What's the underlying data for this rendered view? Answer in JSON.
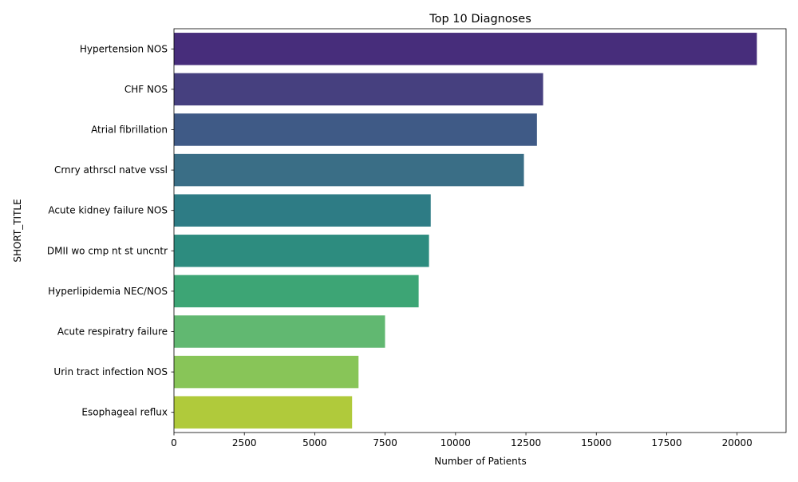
{
  "chart_data": {
    "type": "bar",
    "orientation": "horizontal",
    "title": "Top 10 Diagnoses",
    "xlabel": "Number of Patients",
    "ylabel": "SHORT_TITLE",
    "categories": [
      "Hypertension NOS",
      "CHF NOS",
      "Atrial fibrillation",
      "Crnry athrscl natve vssl",
      "Acute kidney failure NOS",
      "DMII wo cmp nt st uncntr",
      "Hyperlipidemia NEC/NOS",
      "Acute respiratry failure",
      "Urin tract infection NOS",
      "Esophageal reflux"
    ],
    "values": [
      20703,
      13111,
      12891,
      12429,
      9119,
      9058,
      8690,
      7497,
      6555,
      6326
    ],
    "colors": [
      "#472d7b",
      "#46407f",
      "#3f5a86",
      "#3a6e86",
      "#2e7c85",
      "#2d8c7f",
      "#3da575",
      "#61b871",
      "#88c558",
      "#b0ca3b"
    ],
    "xlim": [
      0,
      21738
    ],
    "xticks": [
      0,
      2500,
      5000,
      7500,
      10000,
      12500,
      15000,
      17500,
      20000
    ],
    "xtick_labels": [
      "0",
      "2500",
      "5000",
      "7500",
      "10000",
      "12500",
      "15000",
      "17500",
      "20000"
    ],
    "grid": false,
    "legend": "none"
  }
}
